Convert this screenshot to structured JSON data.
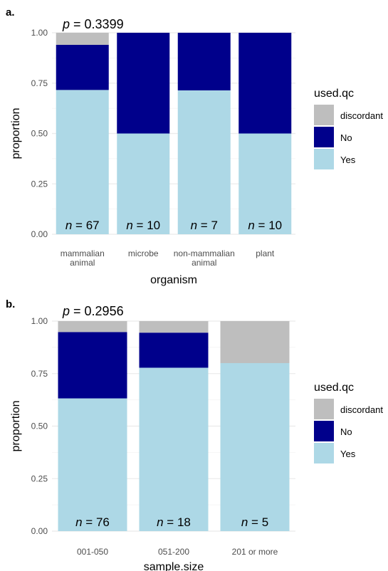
{
  "colors": {
    "discordant": "#bebebe",
    "No": "#00008b",
    "Yes": "#add8e6",
    "grid": "#ebebeb",
    "text": "#000000",
    "tick_text": "#4d4d4d"
  },
  "chart_data": [
    {
      "panel": "a.",
      "type": "bar",
      "stacked": true,
      "annotation": "p = 0.3399",
      "xlabel": "organism",
      "ylabel": "proportion",
      "ylim": [
        0,
        1
      ],
      "yticks": [
        "0.00",
        "0.25",
        "0.50",
        "0.75",
        "1.00"
      ],
      "grid": true,
      "legend": {
        "title": "used.qc",
        "position": "right",
        "entries": [
          "discordant",
          "No",
          "Yes"
        ]
      },
      "categories": [
        [
          "mammalian",
          "animal"
        ],
        [
          "microbe"
        ],
        [
          "non-mammalian",
          "animal"
        ],
        [
          "plant"
        ]
      ],
      "n_labels": [
        "67",
        "10",
        "7",
        "10"
      ],
      "series": [
        {
          "name": "Yes",
          "values": [
            0.716,
            0.5,
            0.714,
            0.5
          ]
        },
        {
          "name": "No",
          "values": [
            0.224,
            0.5,
            0.286,
            0.5
          ]
        },
        {
          "name": "discordant",
          "values": [
            0.06,
            0.0,
            0.0,
            0.0
          ]
        }
      ]
    },
    {
      "panel": "b.",
      "type": "bar",
      "stacked": true,
      "annotation": "p = 0.2956",
      "xlabel": "sample.size",
      "ylabel": "proportion",
      "ylim": [
        0,
        1
      ],
      "yticks": [
        "0.00",
        "0.25",
        "0.50",
        "0.75",
        "1.00"
      ],
      "grid": true,
      "legend": {
        "title": "used.qc",
        "position": "right",
        "entries": [
          "discordant",
          "No",
          "Yes"
        ]
      },
      "categories": [
        [
          "001-050"
        ],
        [
          "051-200"
        ],
        [
          "201 or more"
        ]
      ],
      "n_labels": [
        "76",
        "18",
        "5"
      ],
      "series": [
        {
          "name": "Yes",
          "values": [
            0.632,
            0.778,
            0.8
          ]
        },
        {
          "name": "No",
          "values": [
            0.316,
            0.167,
            0.0
          ]
        },
        {
          "name": "discordant",
          "values": [
            0.052,
            0.055,
            0.2
          ]
        }
      ]
    }
  ]
}
